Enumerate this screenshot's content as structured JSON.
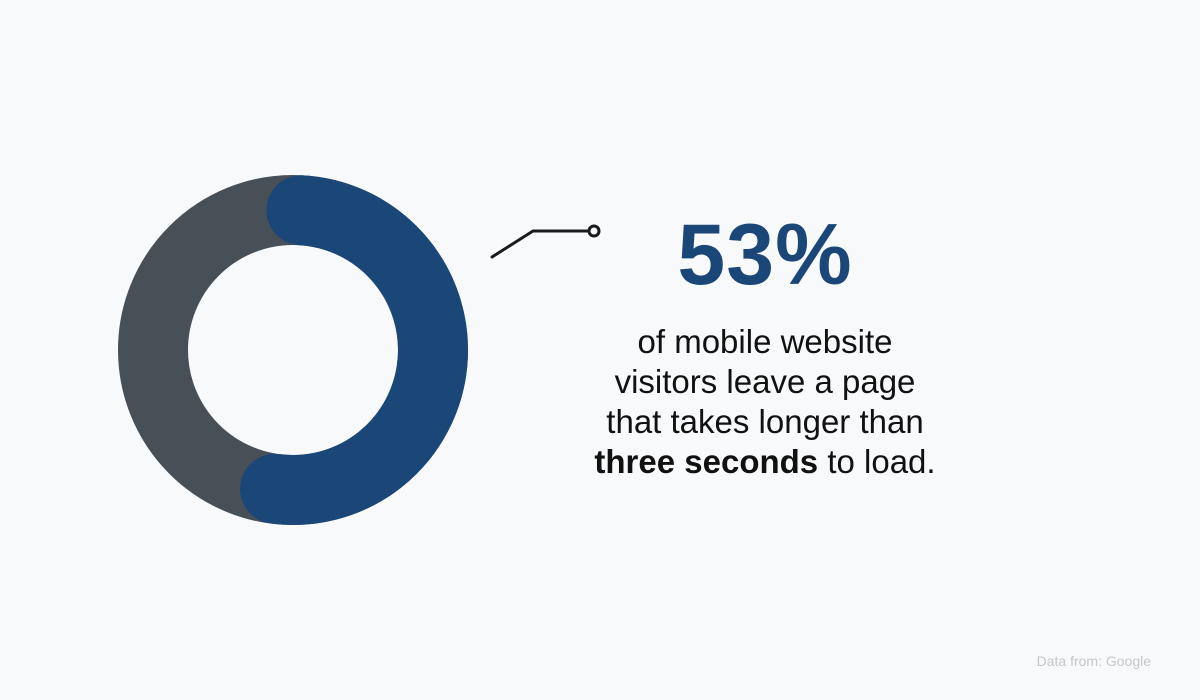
{
  "chart_data": {
    "type": "pie",
    "variant": "donut",
    "values": [
      53,
      47
    ],
    "colors": [
      "#1a4778",
      "#474f57"
    ],
    "highlight_label": "53%"
  },
  "text": {
    "stat": "53%",
    "desc_part1": "of mobile website visitors leave a page that takes longer than",
    "desc_bold": "three seconds",
    "desc_part2": "to load.",
    "source": "Data from: Google"
  },
  "colors": {
    "background": "#f7f9fb",
    "accent": "#1a4778",
    "secondary": "#474f57"
  }
}
